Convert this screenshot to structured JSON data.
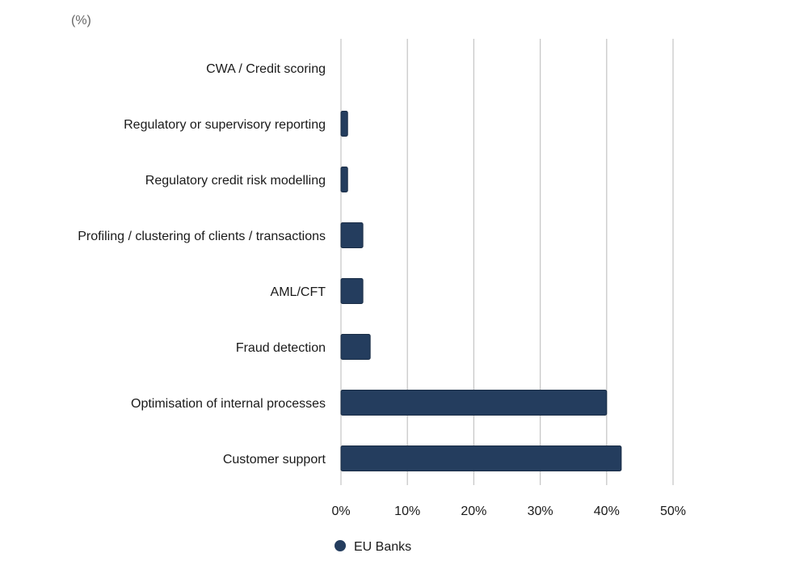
{
  "chart_data": {
    "type": "bar",
    "orientation": "horizontal",
    "unit_label": "(%)",
    "categories": [
      "CWA / Credit scoring",
      "Regulatory or supervisory reporting",
      "Regulatory credit risk modelling",
      "Profiling / clustering of clients / transactions",
      "AML/CFT",
      "Fraud detection",
      "Optimisation of internal processes",
      "Customer support"
    ],
    "series": [
      {
        "name": "EU Banks",
        "color": "#243d5e",
        "values": [
          0,
          1,
          1,
          3.3,
          3.3,
          4.4,
          40,
          42.2
        ]
      }
    ],
    "xlim": [
      0,
      50
    ],
    "x_ticks": [
      0,
      10,
      20,
      30,
      40,
      50
    ],
    "x_tick_labels": [
      "0%",
      "10%",
      "20%",
      "30%",
      "40%",
      "50%"
    ],
    "grid": "vertical",
    "legend_position": "bottom-center"
  }
}
